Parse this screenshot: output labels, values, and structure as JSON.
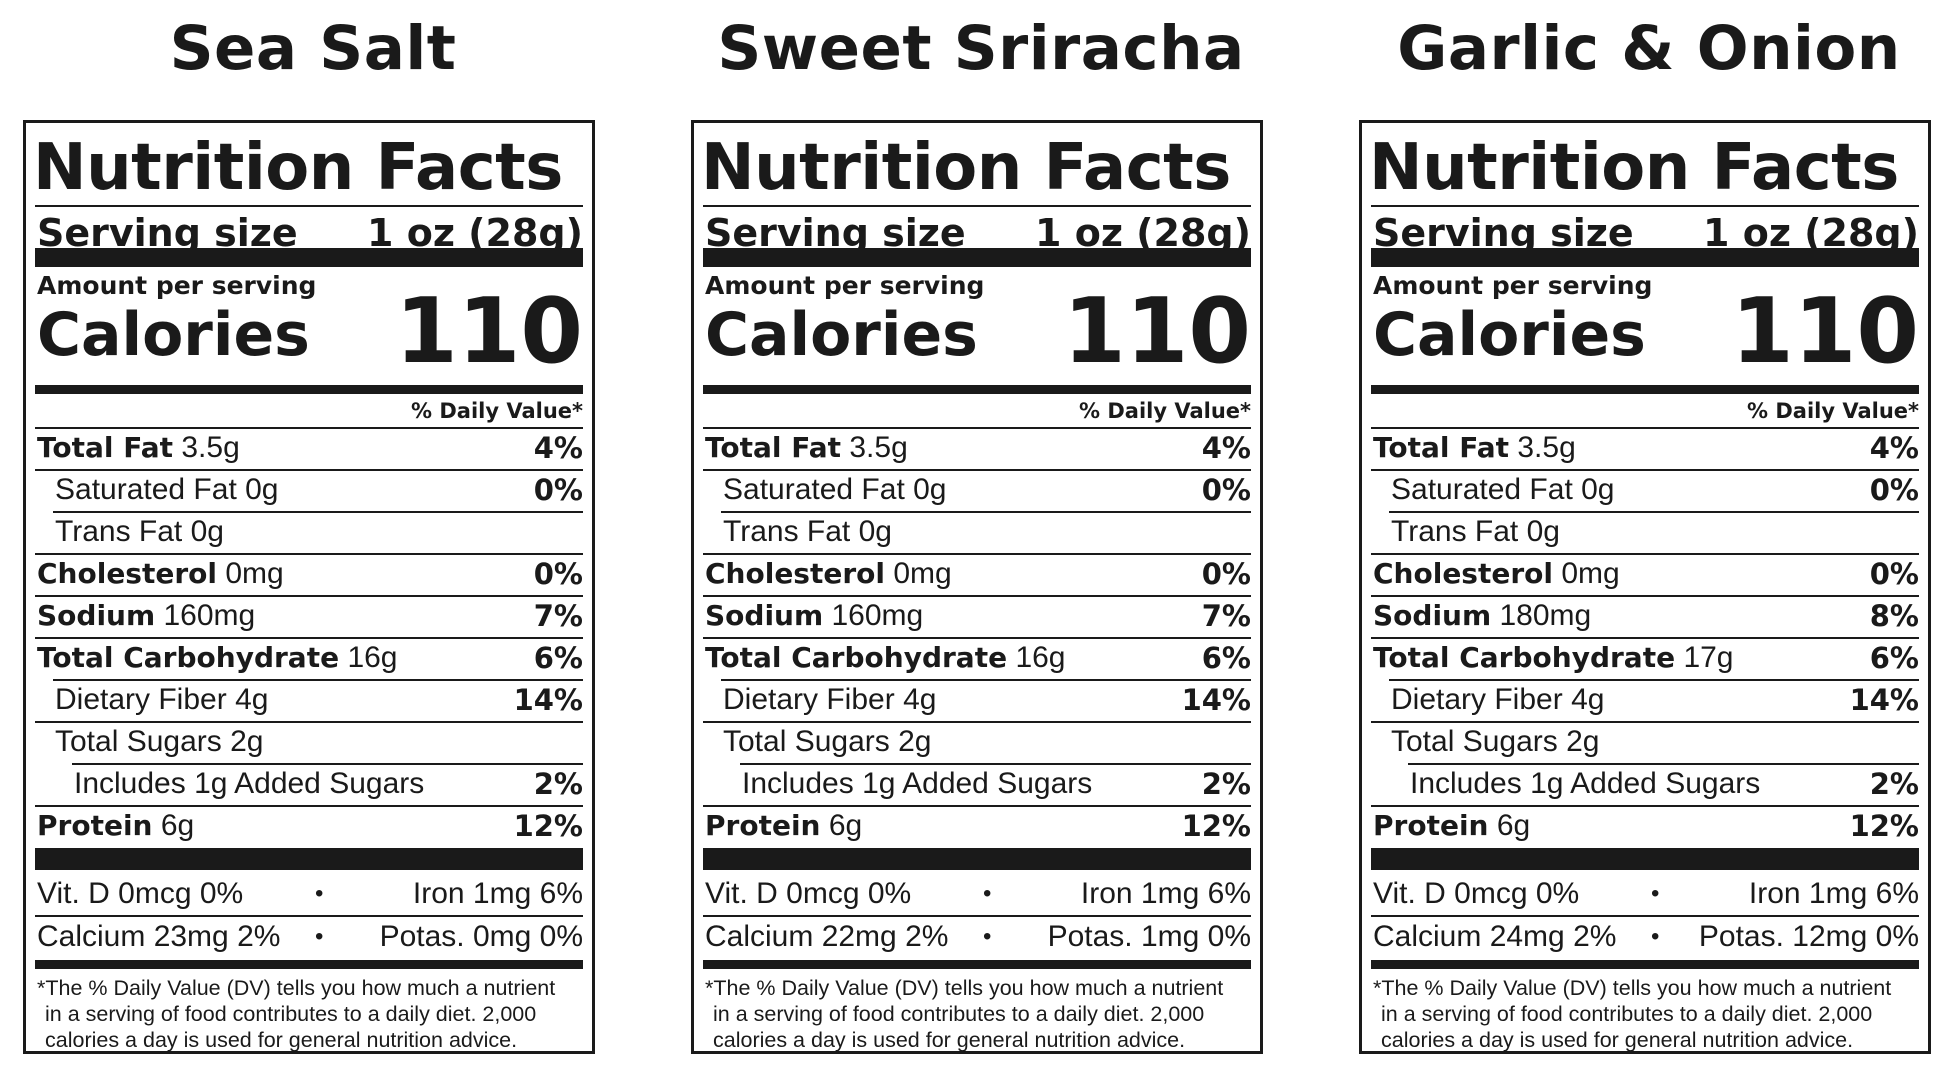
{
  "labels": [
    {
      "flavor": "Sea Salt",
      "title": "Nutrition Facts",
      "serving_label": "Serving size",
      "serving_size": "1 oz (28g)",
      "amount_per_serving": "Amount per serving",
      "calories_label": "Calories",
      "calories": "110",
      "daily_value_header": "% Daily Value*",
      "nutrients": [
        {
          "name": "Total Fat",
          "amount": "3.5g",
          "dv": "4%"
        },
        {
          "name": "Saturated Fat",
          "amount": "0g",
          "dv": "0%"
        },
        {
          "name": "Trans Fat",
          "amount": "0g",
          "dv": ""
        },
        {
          "name": "Cholesterol",
          "amount": "0mg",
          "dv": "0%"
        },
        {
          "name": "Sodium",
          "amount": "160mg",
          "dv": "7%"
        },
        {
          "name": "Total Carbohydrate",
          "amount": "16g",
          "dv": "6%"
        },
        {
          "name": "Dietary Fiber",
          "amount": "4g",
          "dv": "14%"
        },
        {
          "name": "Total Sugars",
          "amount": "2g",
          "dv": ""
        },
        {
          "name": "Includes 1g Added Sugars",
          "amount": "",
          "dv": "2%"
        },
        {
          "name": "Protein",
          "amount": "6g",
          "dv": "12%"
        }
      ],
      "vitamins": {
        "vit_d": "Vit. D 0mcg 0%",
        "iron": "Iron 1mg 6%",
        "calcium": "Calcium 23mg 2%",
        "potassium": "Potas. 0mg 0%",
        "bullet": "•"
      },
      "footnote": [
        "*The % Daily Value (DV) tells you how much a nutrient",
        "in a serving of food contributes to a daily diet. 2,000",
        "calories a day is used for general nutrition advice."
      ]
    },
    {
      "flavor": "Sweet Sriracha",
      "title": "Nutrition Facts",
      "serving_label": "Serving size",
      "serving_size": "1 oz (28g)",
      "amount_per_serving": "Amount per serving",
      "calories_label": "Calories",
      "calories": "110",
      "daily_value_header": "% Daily Value*",
      "nutrients": [
        {
          "name": "Total Fat",
          "amount": "3.5g",
          "dv": "4%"
        },
        {
          "name": "Saturated Fat",
          "amount": "0g",
          "dv": "0%"
        },
        {
          "name": "Trans Fat",
          "amount": "0g",
          "dv": ""
        },
        {
          "name": "Cholesterol",
          "amount": "0mg",
          "dv": "0%"
        },
        {
          "name": "Sodium",
          "amount": "160mg",
          "dv": "7%"
        },
        {
          "name": "Total Carbohydrate",
          "amount": "16g",
          "dv": "6%"
        },
        {
          "name": "Dietary Fiber",
          "amount": "4g",
          "dv": "14%"
        },
        {
          "name": "Total Sugars",
          "amount": "2g",
          "dv": ""
        },
        {
          "name": "Includes 1g Added Sugars",
          "amount": "",
          "dv": "2%"
        },
        {
          "name": "Protein",
          "amount": "6g",
          "dv": "12%"
        }
      ],
      "vitamins": {
        "vit_d": "Vit. D 0mcg 0%",
        "iron": "Iron 1mg 6%",
        "calcium": "Calcium 22mg 2%",
        "potassium": "Potas. 1mg 0%",
        "bullet": "•"
      },
      "footnote": [
        "*The % Daily Value (DV) tells you how much a nutrient",
        "in a serving of food contributes to a daily diet. 2,000",
        "calories a day is used for general nutrition advice."
      ]
    },
    {
      "flavor": "Garlic & Onion",
      "title": "Nutrition Facts",
      "serving_label": "Serving size",
      "serving_size": "1 oz (28g)",
      "amount_per_serving": "Amount per serving",
      "calories_label": "Calories",
      "calories": "110",
      "daily_value_header": "% Daily Value*",
      "nutrients": [
        {
          "name": "Total Fat",
          "amount": "3.5g",
          "dv": "4%"
        },
        {
          "name": "Saturated Fat",
          "amount": "0g",
          "dv": "0%"
        },
        {
          "name": "Trans Fat",
          "amount": "0g",
          "dv": ""
        },
        {
          "name": "Cholesterol",
          "amount": "0mg",
          "dv": "0%"
        },
        {
          "name": "Sodium",
          "amount": "180mg",
          "dv": "8%"
        },
        {
          "name": "Total Carbohydrate",
          "amount": "17g",
          "dv": "6%"
        },
        {
          "name": "Dietary Fiber",
          "amount": "4g",
          "dv": "14%"
        },
        {
          "name": "Total Sugars",
          "amount": "2g",
          "dv": ""
        },
        {
          "name": "Includes 1g Added Sugars",
          "amount": "",
          "dv": "2%"
        },
        {
          "name": "Protein",
          "amount": "6g",
          "dv": "12%"
        }
      ],
      "vitamins": {
        "vit_d": "Vit. D 0mcg 0%",
        "iron": "Iron 1mg 6%",
        "calcium": "Calcium 24mg 2%",
        "potassium": "Potas. 12mg 0%",
        "bullet": "•"
      },
      "footnote": [
        "*The % Daily Value (DV) tells you how much a nutrient",
        "in a serving of food contributes to a daily diet. 2,000",
        "calories a day is used for general nutrition advice."
      ]
    }
  ]
}
